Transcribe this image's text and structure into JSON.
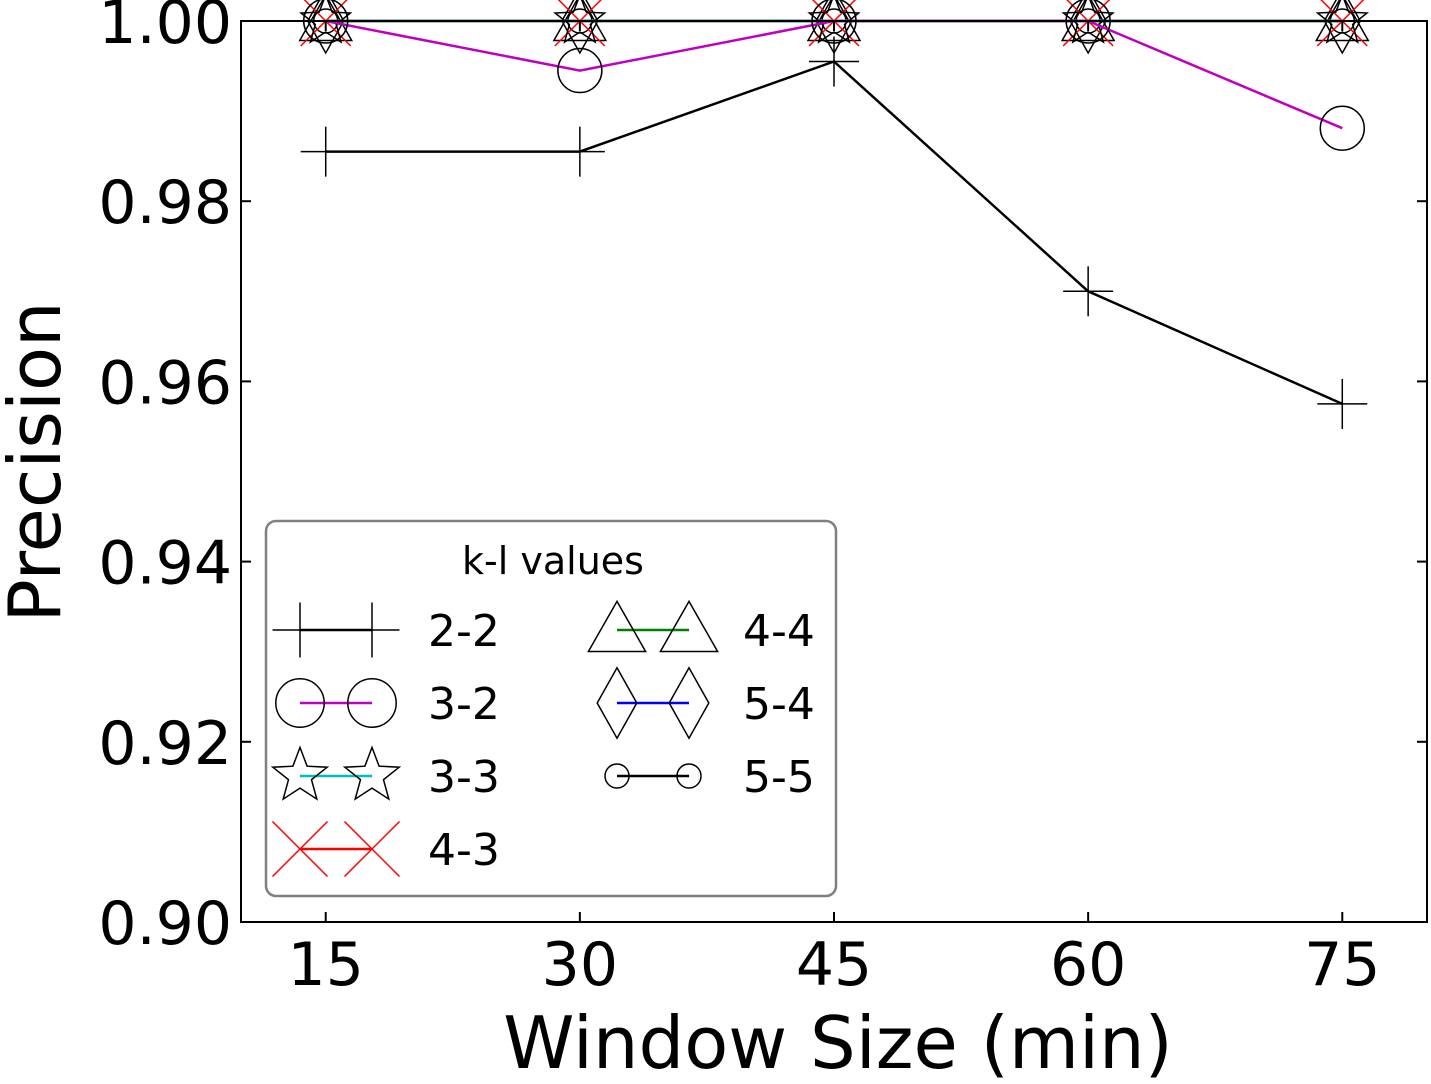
{
  "chart_data": {
    "type": "line",
    "xlabel": "Window Size (min)",
    "ylabel": "Precision",
    "x": [
      15,
      30,
      45,
      60,
      75
    ],
    "xticks": [
      "15",
      "30",
      "45",
      "60",
      "75"
    ],
    "xlim": [
      10,
      80
    ],
    "ylim": [
      0.9,
      1.0
    ],
    "yticks": [
      "0.90",
      "0.92",
      "0.94",
      "0.96",
      "0.98",
      "1.00"
    ],
    "grid": false,
    "legend": {
      "title": "k-l values",
      "placement": "lower-left",
      "columns": 2
    },
    "series": [
      {
        "name": "2-2",
        "color": "#000000",
        "marker": "plus",
        "values": [
          0.9855,
          0.9855,
          0.9955,
          0.97,
          0.9575
        ]
      },
      {
        "name": "3-2",
        "color": "#bf00bf",
        "marker": "circle",
        "values": [
          1.0,
          0.9945,
          1.0,
          1.0,
          0.9881
        ]
      },
      {
        "name": "3-3",
        "color": "#00bfbf",
        "marker": "star",
        "values": [
          1.0,
          1.0,
          1.0,
          1.0,
          1.0
        ]
      },
      {
        "name": "4-3",
        "color": "#ff0000",
        "marker": "x",
        "values": [
          1.0,
          1.0,
          1.0,
          1.0,
          1.0
        ]
      },
      {
        "name": "4-4",
        "color": "#008000",
        "marker": "triangle",
        "values": [
          1.0,
          1.0,
          1.0,
          1.0,
          1.0
        ]
      },
      {
        "name": "5-4",
        "color": "#0000ff",
        "marker": "diamond",
        "values": [
          1.0,
          1.0,
          1.0,
          1.0,
          1.0
        ]
      },
      {
        "name": "5-5",
        "color": "#000000",
        "marker": "small-circle",
        "values": [
          1.0,
          1.0,
          1.0,
          1.0,
          1.0
        ]
      }
    ]
  }
}
